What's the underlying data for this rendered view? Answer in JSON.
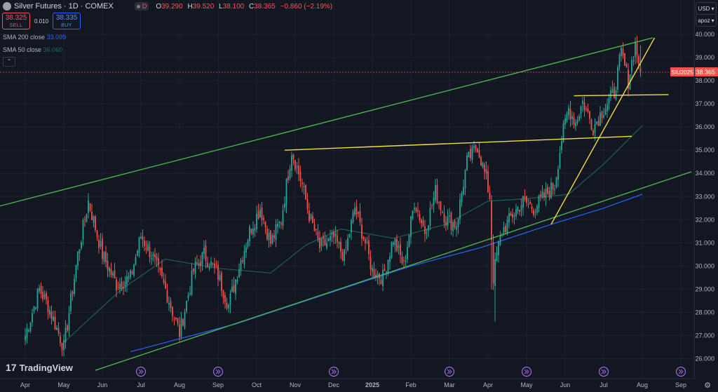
{
  "header": {
    "symbol": "Silver Futures · 1D · COMEX",
    "d_label": "D",
    "ohlc": [
      {
        "k": "O",
        "v": "39.290"
      },
      {
        "k": "H",
        "v": "39.520"
      },
      {
        "k": "L",
        "v": "38.100"
      },
      {
        "k": "C",
        "v": "38.365"
      },
      {
        "k": "",
        "v": "−0.860 (−2.19%)"
      }
    ]
  },
  "trade": {
    "sell_price": "38.325",
    "sell_label": "SELL",
    "spread": "0.010",
    "buy_price": "38.335",
    "buy_label": "BUY"
  },
  "indicators": {
    "sma200_label": "SMA 200 close",
    "sma200_value": "33.099",
    "sma50_label": "SMA 50 close",
    "sma50_value": "36.060"
  },
  "price_panel": {
    "currency": "USD",
    "scale": "apoz"
  },
  "brand": "TradingView",
  "chart_data": {
    "type": "candlestick",
    "ylim": [
      25.6,
      40.35
    ],
    "y_ticks": [
      "26.000",
      "27.000",
      "28.000",
      "29.000",
      "30.000",
      "31.000",
      "32.000",
      "33.000",
      "34.000",
      "35.000",
      "36.000",
      "37.000",
      "38.000",
      "39.000",
      "40.000"
    ],
    "x_ticks": [
      "Apr",
      "May",
      "Jun",
      "Jul",
      "Aug",
      "Sep",
      "Oct",
      "Nov",
      "Dec",
      "2025",
      "Feb",
      "Mar",
      "Apr",
      "May",
      "Jun",
      "Jul",
      "Aug",
      "Sep"
    ],
    "x_tick_index": [
      0,
      22,
      44,
      66,
      88,
      110,
      132,
      154,
      176,
      198,
      220,
      242,
      264,
      286,
      308,
      330,
      352,
      374
    ],
    "last_price": {
      "label": "SIU2025",
      "value": "38.365",
      "y": 38.365
    },
    "anchors": [
      [
        0,
        27.0
      ],
      [
        8,
        29.0
      ],
      [
        13,
        28.3
      ],
      [
        22,
        26.5
      ],
      [
        30,
        30.5
      ],
      [
        36,
        32.8
      ],
      [
        44,
        30.5
      ],
      [
        52,
        29.2
      ],
      [
        60,
        29.5
      ],
      [
        66,
        31.3
      ],
      [
        72,
        30.5
      ],
      [
        80,
        29.0
      ],
      [
        88,
        27.1
      ],
      [
        96,
        29.8
      ],
      [
        102,
        30.5
      ],
      [
        110,
        29.6
      ],
      [
        116,
        28.3
      ],
      [
        122,
        30.0
      ],
      [
        128,
        31.5
      ],
      [
        134,
        32.5
      ],
      [
        140,
        31.0
      ],
      [
        146,
        32.0
      ],
      [
        152,
        35.0
      ],
      [
        158,
        33.5
      ],
      [
        162,
        32.2
      ],
      [
        168,
        30.8
      ],
      [
        176,
        31.2
      ],
      [
        182,
        30.4
      ],
      [
        188,
        32.5
      ],
      [
        194,
        31.0
      ],
      [
        198,
        29.8
      ],
      [
        204,
        29.5
      ],
      [
        210,
        31.2
      ],
      [
        216,
        30.0
      ],
      [
        222,
        32.8
      ],
      [
        228,
        31.5
      ],
      [
        234,
        33.2
      ],
      [
        240,
        32.0
      ],
      [
        246,
        31.8
      ],
      [
        252,
        34.5
      ],
      [
        258,
        35.2
      ],
      [
        262,
        34.0
      ],
      [
        265,
        33.0
      ],
      [
        267,
        29.5
      ],
      [
        269,
        30.5
      ],
      [
        272,
        31.5
      ],
      [
        278,
        32.2
      ],
      [
        284,
        32.8
      ],
      [
        290,
        32.5
      ],
      [
        296,
        33.0
      ],
      [
        302,
        33.5
      ],
      [
        306,
        35.5
      ],
      [
        310,
        36.8
      ],
      [
        314,
        36.2
      ],
      [
        318,
        37.1
      ],
      [
        324,
        36.0
      ],
      [
        330,
        36.8
      ],
      [
        336,
        37.5
      ],
      [
        340,
        39.2
      ],
      [
        344,
        38.0
      ],
      [
        348,
        39.6
      ],
      [
        351,
        38.365
      ]
    ],
    "bottom_anomalies": [
      [
        268,
        27.6
      ],
      [
        266,
        29.0
      ]
    ],
    "sma200": [
      [
        60,
        26.3
      ],
      [
        120,
        27.5
      ],
      [
        180,
        29.0
      ],
      [
        220,
        30.0
      ],
      [
        260,
        30.8
      ],
      [
        300,
        31.8
      ],
      [
        330,
        32.5
      ],
      [
        352,
        33.099
      ]
    ],
    "sma50": [
      [
        22,
        26.7
      ],
      [
        55,
        29.0
      ],
      [
        80,
        30.3
      ],
      [
        110,
        29.9
      ],
      [
        140,
        29.7
      ],
      [
        160,
        30.9
      ],
      [
        180,
        31.6
      ],
      [
        210,
        31.2
      ],
      [
        240,
        31.8
      ],
      [
        264,
        32.8
      ],
      [
        285,
        32.9
      ],
      [
        310,
        33.1
      ],
      [
        330,
        34.4
      ],
      [
        352,
        36.06
      ]
    ],
    "lines": [
      {
        "color": "#4caf50",
        "p1": [
          -50,
          31.9
        ],
        "p2": [
          358,
          39.85
        ]
      },
      {
        "color": "#4caf50",
        "p1": [
          40,
          25.5
        ],
        "p2": [
          380,
          34.07
        ]
      },
      {
        "color": "#f2dd46",
        "p1": [
          148,
          35.0
        ],
        "p2": [
          346,
          35.6
        ]
      },
      {
        "color": "#f2dd46",
        "p1": [
          313,
          37.35
        ],
        "p2": [
          367,
          37.4
        ]
      },
      {
        "color": "#f2dd46",
        "p1": [
          300,
          31.8
        ],
        "p2": [
          359,
          39.85
        ]
      }
    ],
    "events_at": [
      66,
      110,
      176,
      242,
      286,
      330,
      374
    ]
  }
}
